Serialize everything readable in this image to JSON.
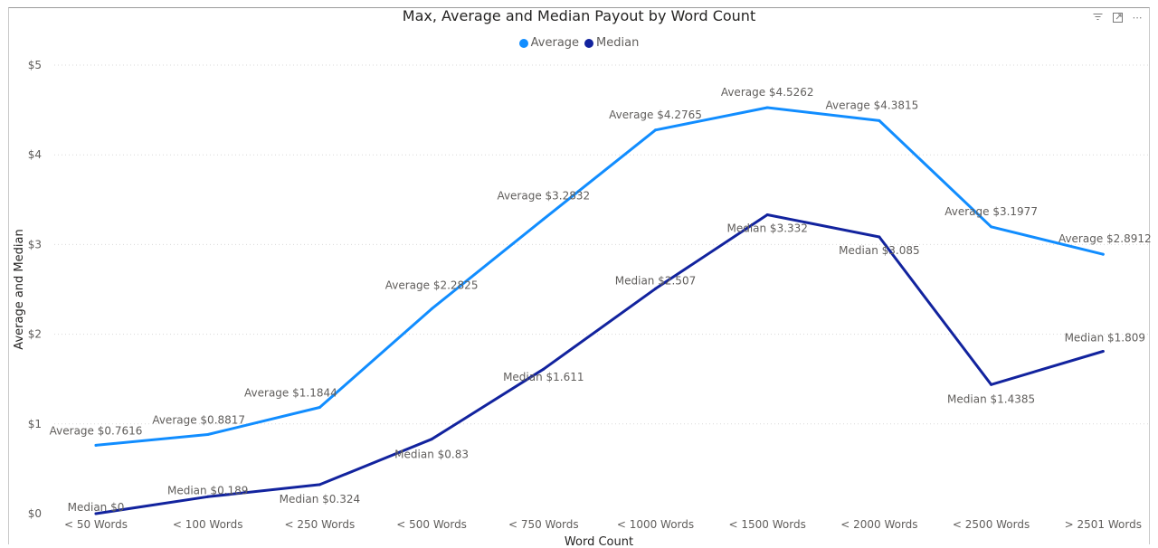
{
  "toolbar": {
    "filter_icon": "filter-icon",
    "focus_icon": "focus-mode-icon",
    "more_icon": "more-options-icon",
    "more_glyph": "⋯"
  },
  "colors": {
    "average": "#118DFF",
    "median": "#12239E",
    "gridline": "#d9d9d9"
  },
  "chart_data": {
    "type": "line",
    "title": "Max, Average and Median Payout by Word Count",
    "xlabel": "Word Count",
    "ylabel": "Average and Median",
    "categories": [
      "< 50 Words",
      "< 100 Words",
      "< 250 Words",
      "< 500 Words",
      "< 750 Words",
      "< 1000 Words",
      "< 1500 Words",
      "< 2000 Words",
      "< 2500 Words",
      "> 2501 Words"
    ],
    "ylim": [
      0,
      5
    ],
    "yticks": [
      0,
      1,
      2,
      3,
      4,
      5
    ],
    "ytick_labels": [
      "$0",
      "$1",
      "$2",
      "$3",
      "$4",
      "$5"
    ],
    "grid": true,
    "legend_position": "top-center",
    "series": [
      {
        "name": "Average",
        "color": "#118DFF",
        "values": [
          0.7616,
          0.8817,
          1.1844,
          2.2825,
          3.2832,
          4.2765,
          4.5262,
          4.3815,
          3.1977,
          2.8912
        ],
        "labels": [
          "Average $0.7616",
          "Average $0.8817",
          "Average $1.1844",
          "Average $2.2825",
          "Average $3.2832",
          "Average $4.2765",
          "Average $4.5262",
          "Average $4.3815",
          "Average $3.1977",
          "Average $2.8912"
        ]
      },
      {
        "name": "Median",
        "color": "#12239E",
        "values": [
          0,
          0.189,
          0.324,
          0.83,
          1.611,
          2.507,
          3.332,
          3.085,
          1.4385,
          1.809
        ],
        "labels": [
          "Median $0",
          "Median $0.189",
          "Median $0.324",
          "Median $0.83",
          "Median $1.611",
          "Median $2.507",
          "Median $3.332",
          "Median $3.085",
          "Median $1.4385",
          "Median $1.809"
        ]
      }
    ]
  }
}
